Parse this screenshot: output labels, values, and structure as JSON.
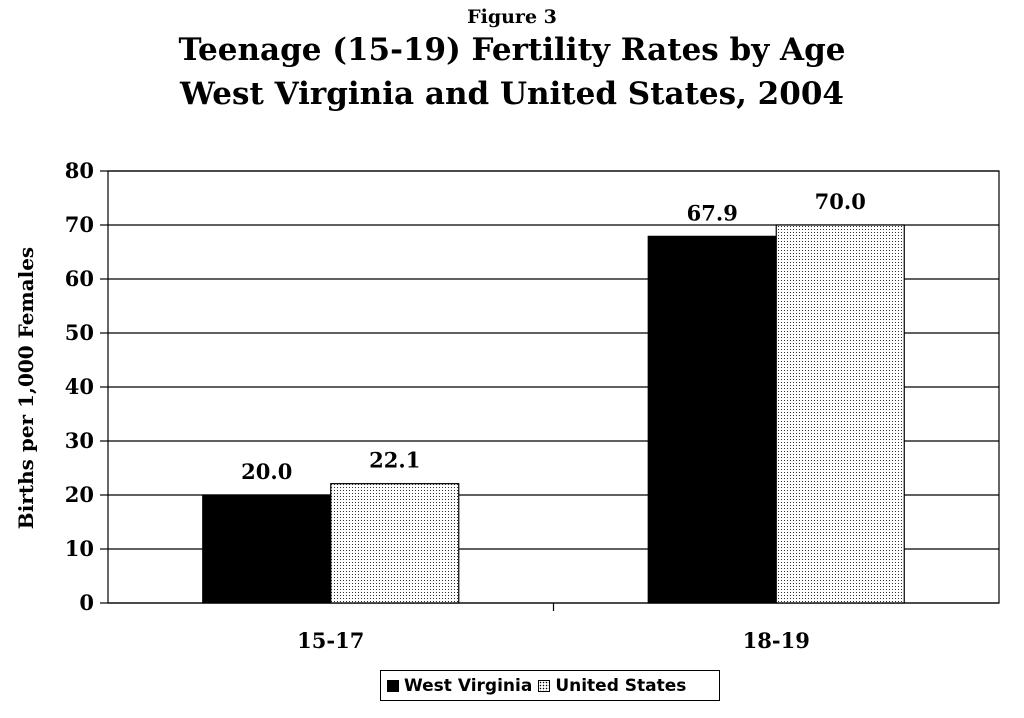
{
  "figure_label": "Figure 3",
  "title_line1": "Teenage (15-19) Fertility Rates by Age",
  "title_line2": "West Virginia and United States, 2004",
  "colors": {
    "west_virginia": "#000000",
    "united_states": "dotted-white",
    "grid": "#000000"
  },
  "chart_data": {
    "type": "bar",
    "title": "Teenage (15-19) Fertility Rates by Age West Virginia and United States, 2004",
    "xlabel": "",
    "ylabel": "Births per 1,000 Females",
    "ylim": [
      0,
      80
    ],
    "yticks": [
      0,
      10,
      20,
      30,
      40,
      50,
      60,
      70,
      80
    ],
    "grid": true,
    "legend_position": "bottom",
    "categories": [
      "15-17",
      "18-19"
    ],
    "series": [
      {
        "name": "West Virginia",
        "values": [
          20.0,
          67.9
        ],
        "labels": [
          "20.0",
          "67.9"
        ]
      },
      {
        "name": "United States",
        "values": [
          22.1,
          70.0
        ],
        "labels": [
          "22.1",
          "70.0"
        ]
      }
    ]
  }
}
